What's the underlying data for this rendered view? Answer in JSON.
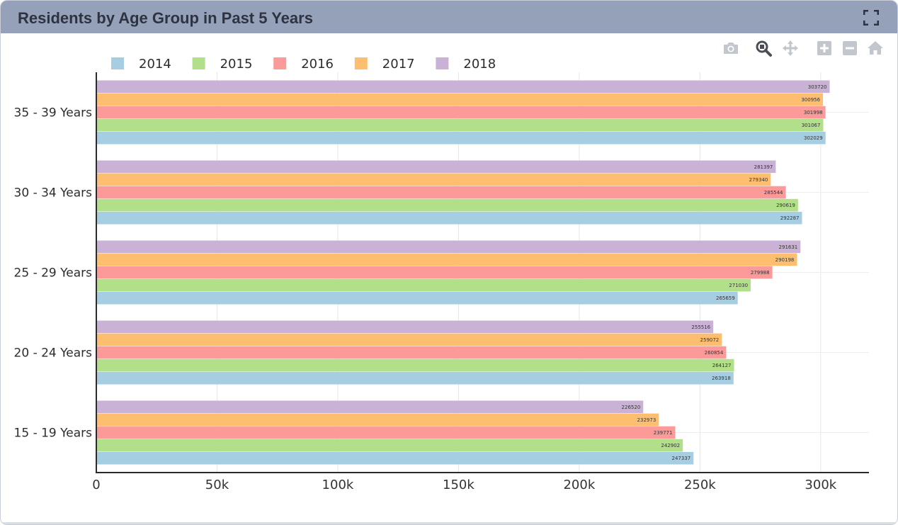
{
  "panel": {
    "title": "Residents by Age Group in Past 5 Years"
  },
  "toolbar": {
    "icons": [
      "camera-icon",
      "zoom-icon",
      "pan-icon",
      "zoom-in-icon",
      "zoom-out-icon",
      "home-icon"
    ]
  },
  "chart_data": {
    "type": "bar",
    "orientation": "horizontal",
    "title": "Residents by Age Group in Past 5 Years",
    "xlabel": "",
    "ylabel": "",
    "categories": [
      "15 - 19 Years",
      "20 - 24 Years",
      "25 - 29 Years",
      "30 - 34 Years",
      "35 - 39 Years"
    ],
    "series": [
      {
        "name": "2014",
        "color": "#a6cee3",
        "values": [
          247337,
          263918,
          265659,
          292287,
          302029
        ]
      },
      {
        "name": "2015",
        "color": "#b2df8a",
        "values": [
          242902,
          264127,
          271030,
          290619,
          301067
        ]
      },
      {
        "name": "2016",
        "color": "#fb9a99",
        "values": [
          239771,
          260854,
          279988,
          285544,
          301998
        ]
      },
      {
        "name": "2017",
        "color": "#fdbf6f",
        "values": [
          232973,
          259072,
          290198,
          279340,
          300956
        ]
      },
      {
        "name": "2018",
        "color": "#cab2d6",
        "values": [
          226520,
          255516,
          291631,
          281397,
          303720
        ]
      }
    ],
    "xlim": [
      0,
      320000
    ],
    "xticks": [
      0,
      50000,
      100000,
      150000,
      200000,
      250000,
      300000
    ],
    "xtick_labels": [
      "0",
      "50k",
      "100k",
      "150k",
      "200k",
      "250k",
      "300k"
    ],
    "grid": true,
    "legend_position": "top-left"
  }
}
